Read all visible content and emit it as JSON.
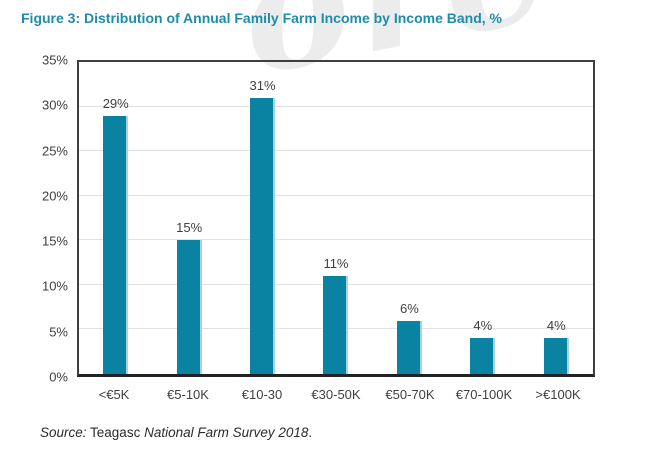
{
  "figure": {
    "title": "Figure 3: Distribution of Annual Family Farm Income by Income Band, %"
  },
  "watermark_fragment": "ore",
  "source": {
    "prefix": "Source:",
    "org": " Teagasc ",
    "survey": "National Farm Survey 2018",
    "end": "."
  },
  "colors": {
    "bar": "#0a83a2",
    "title": "#1e8cab",
    "axis_text": "#3f3f3f",
    "gridline": "#e2e2e2",
    "frame": "#3f3f3f"
  },
  "chart_data": {
    "type": "bar",
    "title": "Figure 3: Distribution of Annual Family Farm Income by Income Band, %",
    "categories": [
      "<€5K",
      "€5-10K",
      "€10-30",
      "€30-50K",
      "€50-70K",
      "€70-100K",
      ">€100K"
    ],
    "values": [
      29,
      15,
      31,
      11,
      6,
      4,
      4
    ],
    "data_labels": [
      "29%",
      "15%",
      "31%",
      "11%",
      "6%",
      "4%",
      "4%"
    ],
    "xlabel": "",
    "ylabel": "",
    "ylim": [
      0,
      35
    ],
    "ytick_step": 5,
    "yticks": [
      "0%",
      "5%",
      "10%",
      "15%",
      "20%",
      "25%",
      "30%",
      "35%"
    ],
    "grid": true,
    "legend": false,
    "bar_color": "#0a83a2",
    "source": "Source: Teagasc National Farm Survey 2018."
  }
}
